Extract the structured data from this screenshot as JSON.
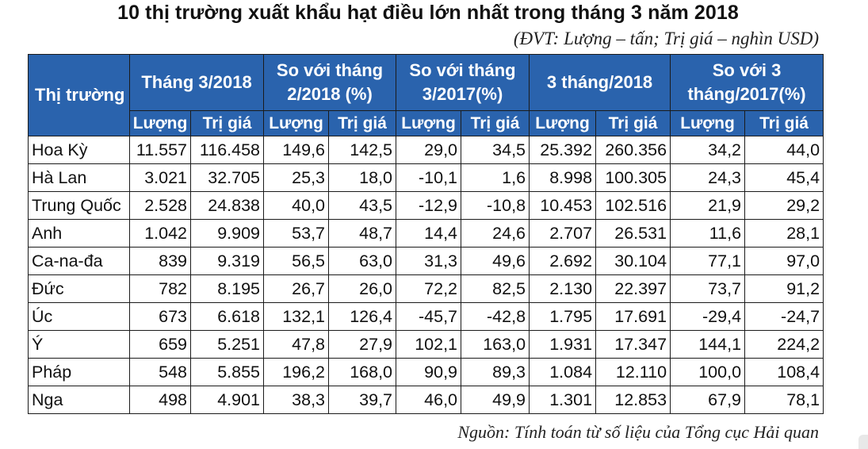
{
  "title": "10 thị trường xuất khẩu hạt điều lớn nhất trong tháng 3 năm 2018",
  "unit_note": "(ĐVT: Lượng – tấn; Trị giá – nghìn USD)",
  "source": "Nguồn: Tính toán từ số liệu của Tổng cục Hải quan",
  "header": {
    "market": "Thị trường",
    "groups": [
      "Tháng 3/2018",
      "So với tháng 2/2018 (%)",
      "So với tháng 3/2017(%)",
      "3 tháng/2018",
      "So với 3 tháng/2017(%)"
    ],
    "sub": [
      "Lượng",
      "Trị giá"
    ]
  },
  "rows": [
    {
      "market": "Hoa Kỳ",
      "values": [
        "11.557",
        "116.458",
        "149,6",
        "142,5",
        "29,0",
        "34,5",
        "25.392",
        "260.356",
        "34,2",
        "44,0"
      ]
    },
    {
      "market": "Hà Lan",
      "values": [
        "3.021",
        "32.705",
        "25,3",
        "18,0",
        "-10,1",
        "1,6",
        "8.998",
        "100.305",
        "24,3",
        "45,4"
      ]
    },
    {
      "market": "Trung Quốc",
      "values": [
        "2.528",
        "24.838",
        "40,0",
        "43,5",
        "-12,9",
        "-10,8",
        "10.453",
        "102.516",
        "21,9",
        "29,2"
      ]
    },
    {
      "market": "Anh",
      "values": [
        "1.042",
        "9.909",
        "53,7",
        "48,7",
        "14,4",
        "24,6",
        "2.707",
        "26.531",
        "11,6",
        "28,1"
      ]
    },
    {
      "market": "Ca-na-đa",
      "values": [
        "839",
        "9.319",
        "56,5",
        "63,0",
        "31,3",
        "49,6",
        "2.692",
        "30.104",
        "77,1",
        "97,0"
      ]
    },
    {
      "market": "Đức",
      "values": [
        "782",
        "8.195",
        "26,7",
        "26,0",
        "72,2",
        "82,5",
        "2.130",
        "22.397",
        "73,7",
        "91,2"
      ]
    },
    {
      "market": "Úc",
      "values": [
        "673",
        "6.618",
        "132,1",
        "126,4",
        "-45,7",
        "-42,8",
        "1.795",
        "17.691",
        "-29,4",
        "-24,7"
      ]
    },
    {
      "market": "Ý",
      "values": [
        "659",
        "5.251",
        "47,8",
        "27,9",
        "102,1",
        "163,0",
        "1.931",
        "17.347",
        "144,1",
        "224,2"
      ]
    },
    {
      "market": "Pháp",
      "values": [
        "548",
        "5.855",
        "196,2",
        "168,0",
        "90,9",
        "89,3",
        "1.084",
        "12.110",
        "100,0",
        "108,4"
      ]
    },
    {
      "market": "Nga",
      "values": [
        "498",
        "4.901",
        "38,3",
        "39,7",
        "46,0",
        "49,9",
        "1.301",
        "12.853",
        "67,9",
        "78,1"
      ]
    }
  ],
  "colors": {
    "header_bg": "#2a63ad",
    "header_text": "#ffffff"
  }
}
